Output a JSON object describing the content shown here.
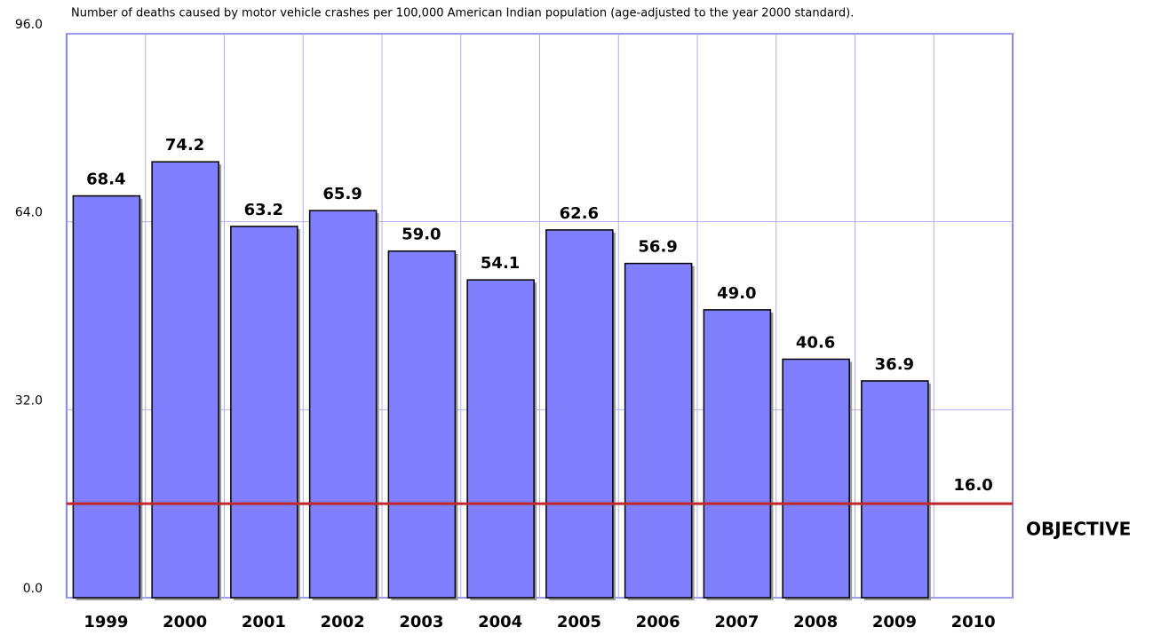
{
  "chart_data": {
    "type": "bar",
    "title": "Number of deaths caused by motor vehicle crashes per 100,000 American Indian population (age-adjusted to the year 2000 standard).",
    "categories": [
      "1999",
      "2000",
      "2001",
      "2002",
      "2003",
      "2004",
      "2005",
      "2006",
      "2007",
      "2008",
      "2009",
      "2010"
    ],
    "values": [
      68.4,
      74.2,
      63.2,
      65.9,
      59.0,
      54.1,
      62.6,
      56.9,
      49.0,
      40.6,
      36.9,
      null
    ],
    "value_labels": [
      "68.4",
      "74.2",
      "63.2",
      "65.9",
      "59.0",
      "54.1",
      "62.6",
      "56.9",
      "49.0",
      "40.6",
      "36.9",
      null
    ],
    "color": "#8080ff",
    "ylim": [
      0,
      96
    ],
    "yticks": [
      {
        "value": 0,
        "label": "0.0"
      },
      {
        "value": 32,
        "label": "32.0"
      },
      {
        "value": 64,
        "label": "64.0"
      },
      {
        "value": 96,
        "label": "96.0"
      }
    ],
    "grid": true,
    "objective": {
      "value": 16,
      "value_label": "16.0",
      "label": "OBJECTIVE",
      "color": "#c0282a"
    }
  }
}
